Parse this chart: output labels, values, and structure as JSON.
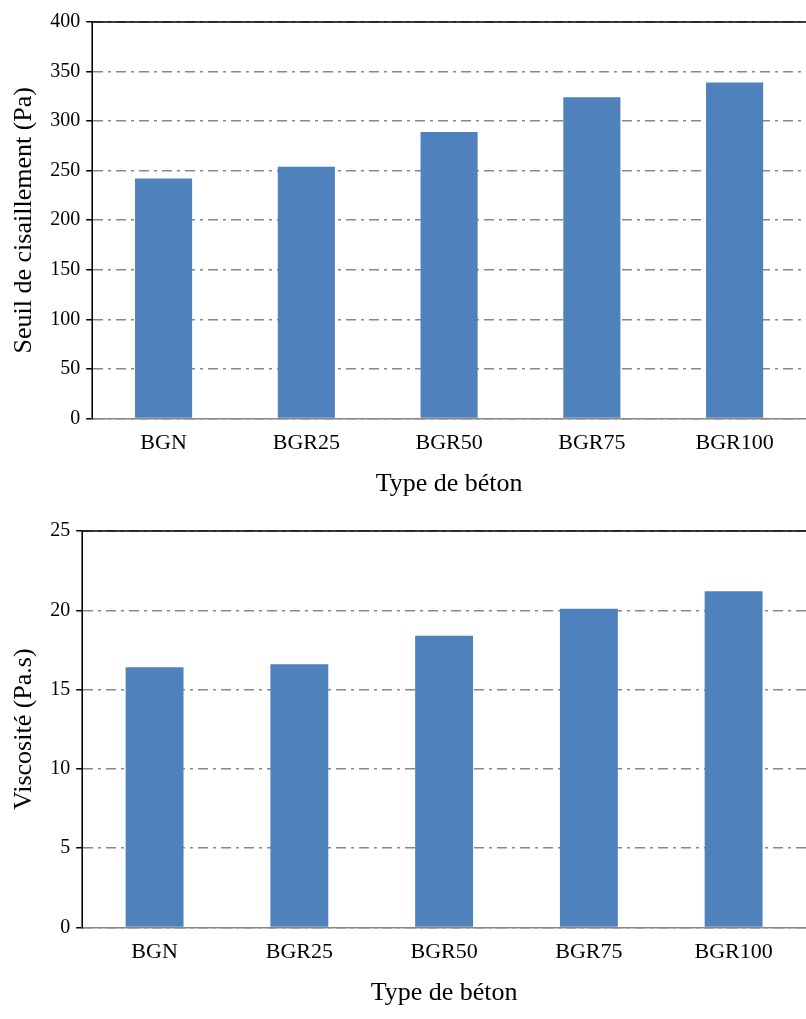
{
  "chart_data": [
    {
      "type": "bar",
      "xlabel": "Type de béton",
      "ylabel": "Seuil de cisaillement (Pa)",
      "categories": [
        "BGN",
        "BGR25",
        "BGR50",
        "BGR75",
        "BGR100"
      ],
      "values": [
        242,
        254,
        289,
        324,
        339
      ],
      "color": "#4f81bd",
      "ylim": [
        0,
        400
      ],
      "yticks": [
        0,
        50,
        100,
        150,
        200,
        250,
        300,
        350,
        400
      ],
      "grid": "y",
      "legend": false
    },
    {
      "type": "bar",
      "xlabel": "Type de béton",
      "ylabel": "Viscosité (Pa.s)",
      "categories": [
        "BGN",
        "BGR25",
        "BGR50",
        "BGR75",
        "BGR100"
      ],
      "values": [
        16.4,
        16.6,
        18.4,
        20.1,
        21.2
      ],
      "color": "#4f81bd",
      "ylim": [
        0,
        25
      ],
      "yticks": [
        0,
        5,
        10,
        15,
        20,
        25
      ],
      "grid": "y",
      "legend": false
    }
  ]
}
